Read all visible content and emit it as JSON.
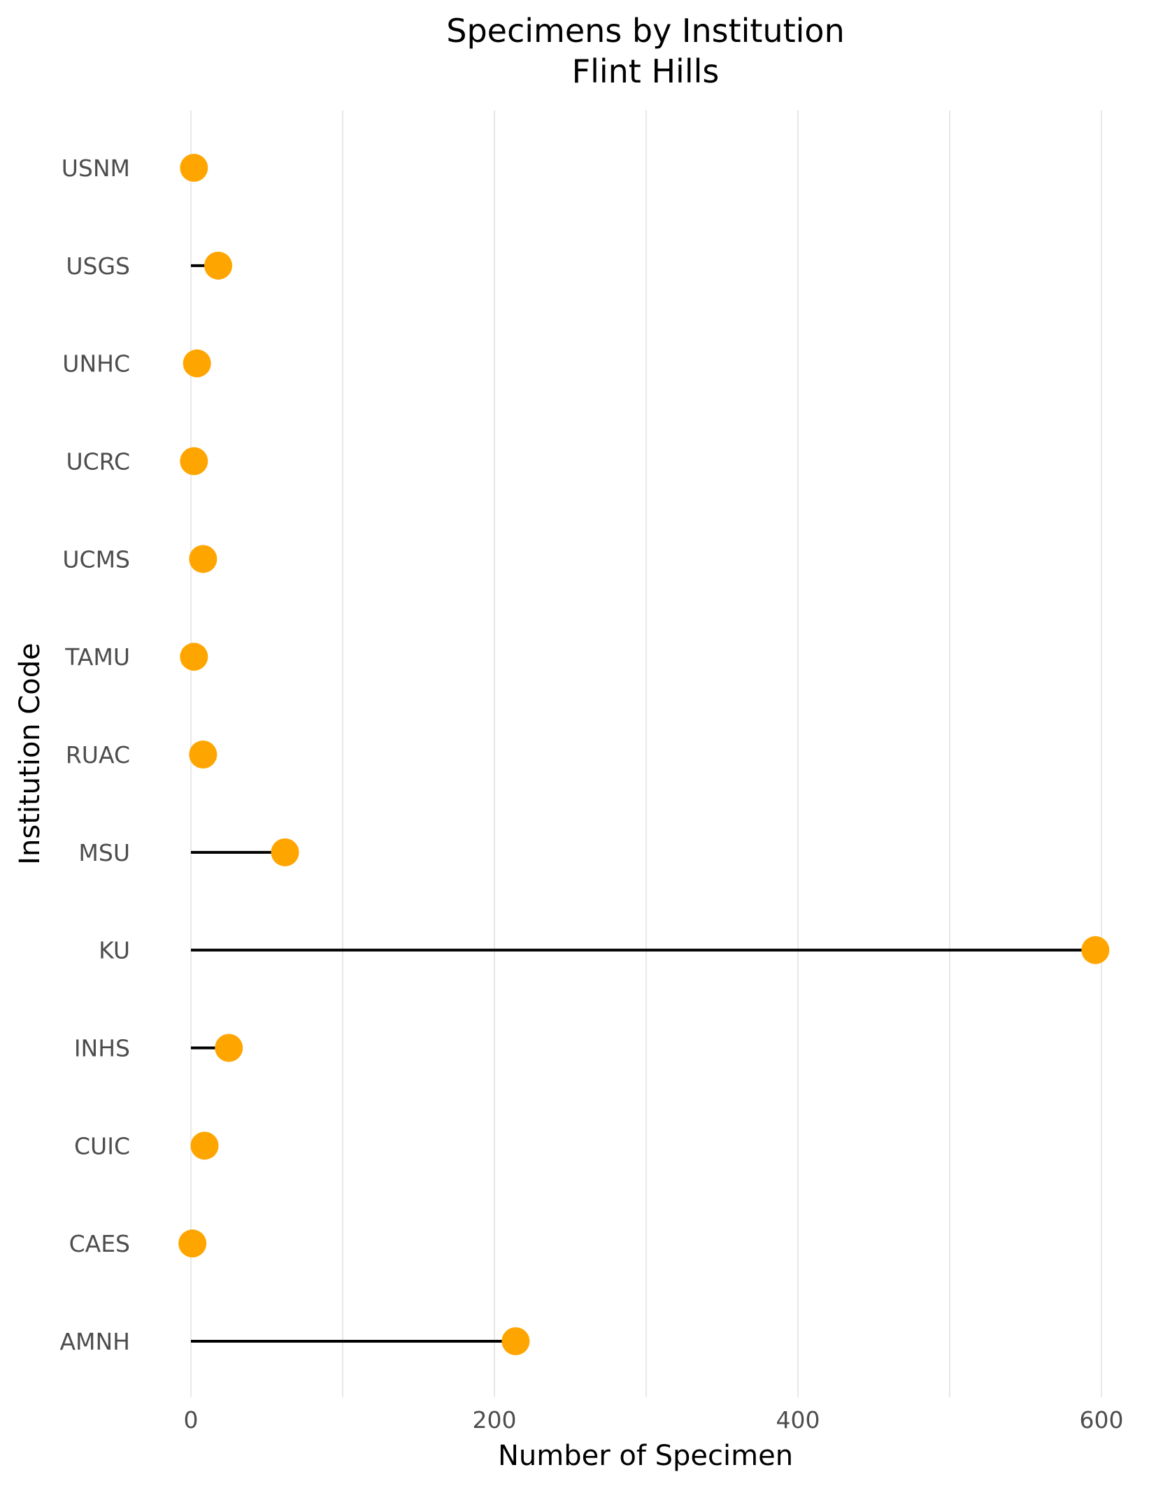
{
  "chart_data": {
    "type": "lollipop",
    "title": "Specimens by Institution",
    "subtitle": "Flint Hills",
    "xlabel": "Number of Specimen",
    "ylabel": "Institution Code",
    "xlim": [
      -10,
      610
    ],
    "x_ticks": [
      0,
      200,
      400,
      600
    ],
    "x_tick_labels": [
      "0",
      "200",
      "400",
      "600"
    ],
    "grid": "vertical",
    "marker_color": "#FFA500",
    "stem_color": "#000000",
    "categories": [
      "AMNH",
      "CAES",
      "CUIC",
      "INHS",
      "KU",
      "MSU",
      "RUAC",
      "TAMU",
      "UCMS",
      "UCRC",
      "UNHC",
      "USGS",
      "USNM"
    ],
    "values": [
      214,
      1,
      9,
      25,
      596,
      62,
      8,
      2,
      8,
      2,
      4,
      18,
      2
    ]
  }
}
